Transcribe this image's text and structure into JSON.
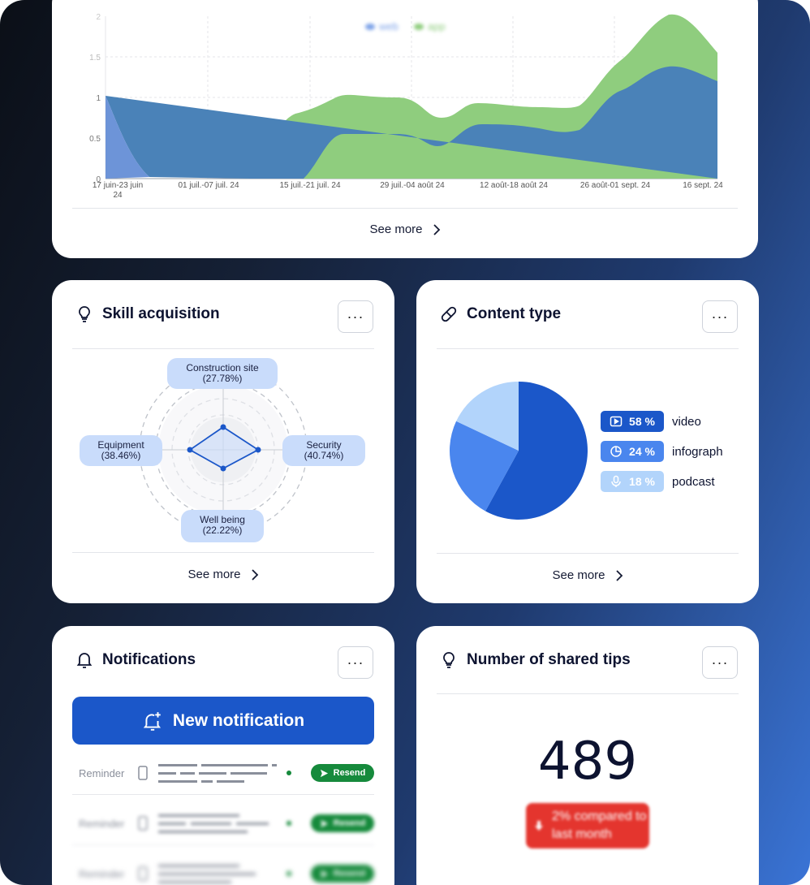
{
  "traffic_card": {
    "see_more": "See more",
    "legend": [
      "web",
      "app"
    ],
    "chart_data": {
      "type": "area",
      "series": [
        {
          "name": "web",
          "color": "#3f6fd0"
        },
        {
          "name": "app",
          "color": "#7ec16c"
        }
      ],
      "x_ticks": [
        "17 juin-23 juin 24",
        "01 juil.-07 juil. 24",
        "15 juil.-21 juil. 24",
        "29 juil.-04 août 24",
        "12 août-18 août 24",
        "26 août-01 sept. 24",
        "16 sept. 24"
      ],
      "y_ticks": [
        "0",
        "0.5",
        "1",
        "1.5",
        "2"
      ],
      "ylim": [
        0,
        2
      ]
    }
  },
  "skill_card": {
    "title": "Skill acquisition",
    "more": "···",
    "see_more": "See more",
    "chart_data": {
      "type": "radar",
      "axes": [
        {
          "name": "Construction site",
          "value_label": "(27.78%)",
          "value": 27.78
        },
        {
          "name": "Security",
          "value_label": "(40.74%)",
          "value": 40.74
        },
        {
          "name": "Well being",
          "value_label": "(22.22%)",
          "value": 22.22
        },
        {
          "name": "Equipment",
          "value_label": "(38.46%)",
          "value": 38.46
        }
      ]
    }
  },
  "content_card": {
    "title": "Content type",
    "more": "···",
    "see_more": "See more",
    "chart_data": {
      "type": "pie",
      "slices": [
        {
          "name": "video",
          "value": 58,
          "label": "58 %",
          "color": "#1b57c9",
          "icon": "play-icon"
        },
        {
          "name": "infograph",
          "value": 24,
          "label": "24 %",
          "color": "#4a86ee",
          "icon": "chart-icon"
        },
        {
          "name": "podcast",
          "value": 18,
          "label": "18 %",
          "color": "#b2d4fb",
          "icon": "mic-icon"
        }
      ]
    }
  },
  "notifications_card": {
    "title": "Notifications",
    "more": "···",
    "new_button": "New notification",
    "rows": [
      {
        "label": "Reminder",
        "action": "Resend"
      },
      {
        "label": "Reminder",
        "action": "Resend"
      },
      {
        "label": "Reminder",
        "action": "Resend"
      }
    ]
  },
  "tips_card": {
    "title": "Number of shared tips",
    "more": "···",
    "value": "489",
    "comparison": "2% compared to last month"
  },
  "colors": {
    "primary": "#1b57c9",
    "success": "#168a3c",
    "danger": "#e4352e"
  }
}
